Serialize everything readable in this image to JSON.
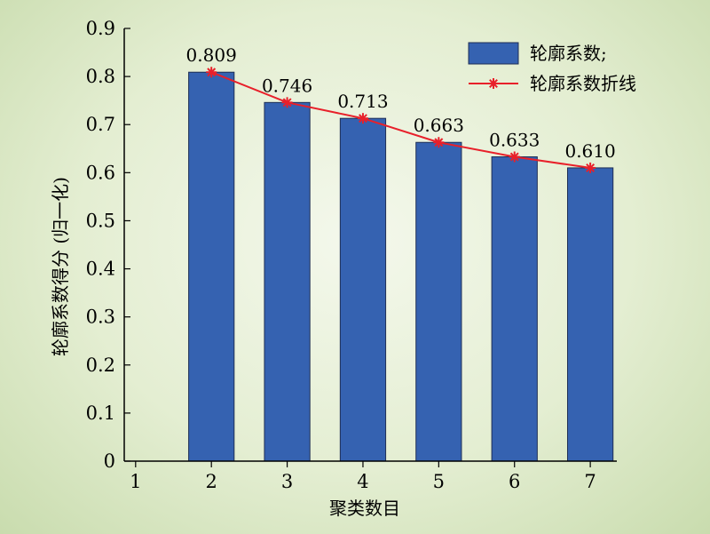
{
  "chart_data": {
    "type": "bar",
    "categories": [
      "2",
      "3",
      "4",
      "5",
      "6",
      "7"
    ],
    "x_ticks": [
      "1",
      "2",
      "3",
      "4",
      "5",
      "6",
      "7"
    ],
    "xlim": [
      0.85,
      7.35
    ],
    "values": [
      0.809,
      0.746,
      0.713,
      0.663,
      0.633,
      0.61
    ],
    "data_labels": [
      "0.809",
      "0.746",
      "0.713",
      "0.663",
      "0.633",
      "0.610"
    ],
    "series": [
      {
        "name": "轮廓系数;",
        "type": "bar",
        "values": [
          0.809,
          0.746,
          0.713,
          0.663,
          0.633,
          0.61
        ]
      },
      {
        "name": "轮廓系数折线",
        "type": "line",
        "marker": "asterisk",
        "values": [
          0.809,
          0.746,
          0.713,
          0.663,
          0.633,
          0.61
        ]
      }
    ],
    "xlabel": "聚类数目",
    "ylabel": "轮廓系数得分 (归一化)",
    "ylim": [
      0,
      0.9
    ],
    "y_ticks": [
      "0",
      "0.1",
      "0.2",
      "0.3",
      "0.4",
      "0.5",
      "0.6",
      "0.7",
      "0.8",
      "0.9"
    ],
    "legend_position": "top-right",
    "grid": false,
    "colors": {
      "bar": "#3562b1",
      "bar_edge": "#1f2f55",
      "line": "#e8202a"
    }
  }
}
